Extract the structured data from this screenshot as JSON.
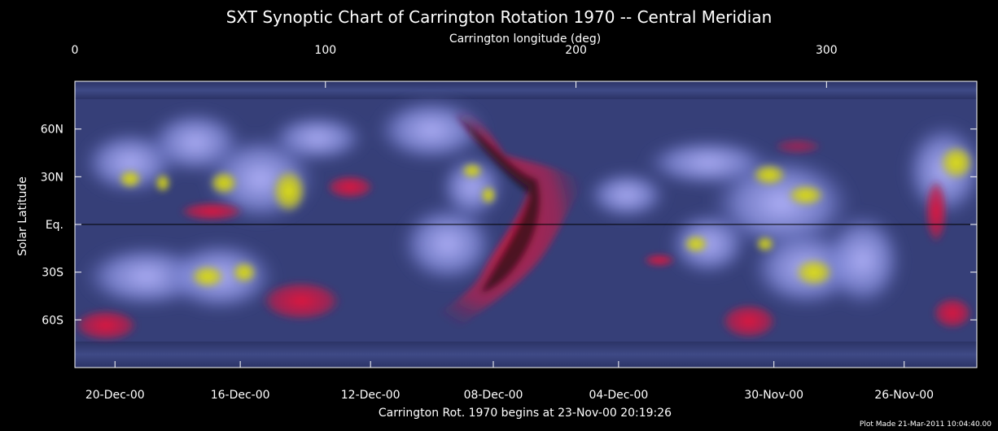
{
  "chart_data": {
    "type": "heatmap",
    "title": "SXT Synoptic Chart of Carrington Rotation 1970 -- Central Meridian",
    "top_axis": {
      "label": "Carrington longitude (deg)",
      "range": [
        0,
        360
      ],
      "ticks": [
        {
          "value": 0,
          "label": "0"
        },
        {
          "value": 100,
          "label": "100"
        },
        {
          "value": 200,
          "label": "200"
        },
        {
          "value": 300,
          "label": "300"
        }
      ]
    },
    "left_axis": {
      "label": "Solar Latitude",
      "range": [
        -90,
        90
      ],
      "ticks": [
        {
          "value": 60,
          "label": "60N"
        },
        {
          "value": 30,
          "label": "30N"
        },
        {
          "value": 0,
          "label": "Eq."
        },
        {
          "value": -30,
          "label": "30S"
        },
        {
          "value": -60,
          "label": "60S"
        }
      ]
    },
    "bottom_axis": {
      "label": "Carrington Rot. 1970 begins at 23-Nov-00 20:19:26",
      "ticks": [
        {
          "longitude": 16,
          "label": "20-Dec-00"
        },
        {
          "longitude": 66,
          "label": "16-Dec-00"
        },
        {
          "longitude": 118,
          "label": "12-Dec-00"
        },
        {
          "longitude": 167,
          "label": "08-Dec-00"
        },
        {
          "longitude": 217,
          "label": "04-Dec-00"
        },
        {
          "longitude": 279,
          "label": "30-Nov-00"
        },
        {
          "longitude": 331,
          "label": "26-Nov-00"
        }
      ]
    },
    "equator_line": true,
    "colormap": [
      "#3a4578",
      "#7a85d8",
      "#c8c8ff",
      "#d8d800",
      "#e0204a"
    ],
    "footer": "Plot Made 21-Mar-2011 10:04:40.00"
  }
}
